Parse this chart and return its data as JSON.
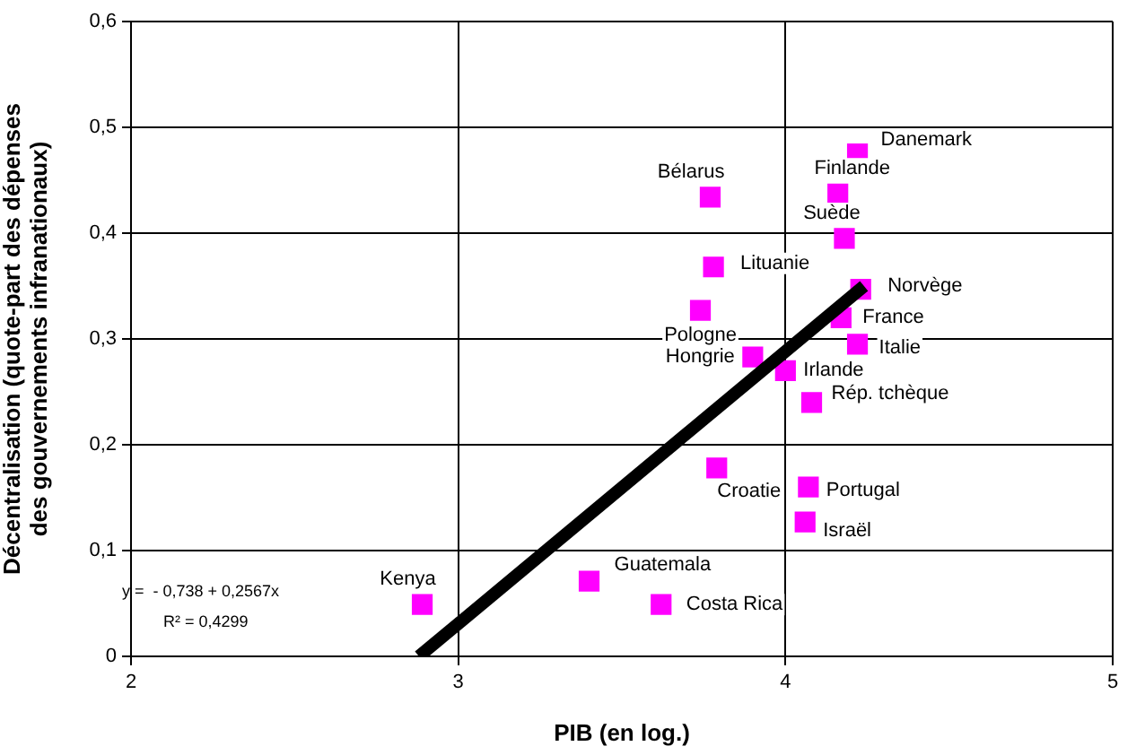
{
  "chart_data": {
    "type": "scatter",
    "xlabel": "PIB (en log.)",
    "ylabel": "Décentralisation (quote-part des dépenses des gouvernements infranationaux)",
    "xlim": [
      2,
      5
    ],
    "xticks": [
      2,
      3,
      4,
      5
    ],
    "ylim": [
      0,
      0.6
    ],
    "yticks": [
      0,
      {
        "value": 0.1,
        "label": "0,1"
      },
      {
        "value": 0.2,
        "label": "0,2"
      },
      {
        "value": 0.3,
        "label": "0,3"
      },
      {
        "value": 0.4,
        "label": "0,4"
      },
      {
        "value": 0.5,
        "label": "0,5"
      },
      {
        "value": 0.6,
        "label": "0,6"
      }
    ],
    "grid": true,
    "legend": false,
    "series": [
      {
        "marker": "square",
        "color": "#ff00ff",
        "x": [
          4.22,
          4.16,
          4.18,
          3.77,
          3.78,
          4.23,
          3.74,
          4.17,
          4.22,
          3.9,
          4.0,
          4.08,
          3.79,
          4.07,
          4.06,
          3.4,
          3.62,
          2.89
        ],
        "values": [
          0.475,
          0.437,
          0.395,
          0.434,
          0.368,
          0.347,
          0.327,
          0.32,
          0.295,
          0.283,
          0.27,
          0.24,
          0.178,
          0.16,
          0.127,
          0.071,
          0.049,
          0.049
        ]
      },
      {
        "type": "line",
        "marker": "none",
        "color": "#000000",
        "x": [
          2.88,
          4.24
        ],
        "values": [
          0,
          0.35
        ]
      }
    ],
    "annotations": [
      {
        "text": "Danemark",
        "x": 4.22,
        "y": 0.475
      },
      {
        "text": "Finlande",
        "x": 4.16,
        "y": 0.437
      },
      {
        "text": "Suède",
        "x": 4.18,
        "y": 0.395
      },
      {
        "text": "Bélarus",
        "x": 3.77,
        "y": 0.434
      },
      {
        "text": "Lituanie",
        "x": 3.78,
        "y": 0.368
      },
      {
        "text": "Norvège",
        "x": 4.23,
        "y": 0.347
      },
      {
        "text": "Pologne",
        "x": 3.74,
        "y": 0.327
      },
      {
        "text": "France",
        "x": 4.17,
        "y": 0.32
      },
      {
        "text": "Italie",
        "x": 4.22,
        "y": 0.295
      },
      {
        "text": "Hongrie",
        "x": 3.9,
        "y": 0.283
      },
      {
        "text": "Irlande",
        "x": 4.0,
        "y": 0.27
      },
      {
        "text": "Rép. tchèque",
        "x": 4.08,
        "y": 0.24
      },
      {
        "text": "Croatie",
        "x": 3.79,
        "y": 0.178
      },
      {
        "text": "Portugal",
        "x": 4.07,
        "y": 0.16
      },
      {
        "text": "Israël",
        "x": 4.06,
        "y": 0.127
      },
      {
        "text": "Guatemala",
        "x": 3.4,
        "y": 0.071
      },
      {
        "text": "Costa Rica",
        "x": 3.62,
        "y": 0.049
      },
      {
        "text": "Kenya",
        "x": 2.89,
        "y": 0.049
      },
      "y =  - 0,738 + 0,2567x",
      "R² = 0,4299"
    ]
  }
}
